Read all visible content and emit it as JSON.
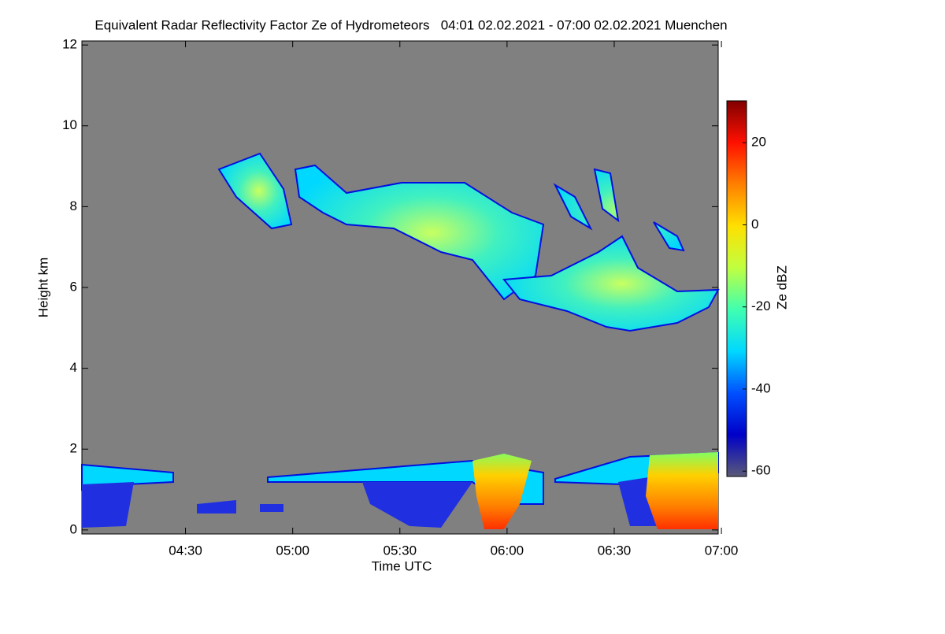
{
  "chart_data": {
    "type": "heatmap",
    "title": "Equivalent Radar Reflectivity Factor Ze of Hydrometeors   04:01 02.02.2021 - 07:00 02.02.2021 Muenchen",
    "x_label": "Time UTC",
    "y_label": "Height km",
    "colorbar_label": "Ze dBZ",
    "xlim": [
      241,
      419.1
    ],
    "xticks": [
      {
        "value": 270,
        "label": "04:30"
      },
      {
        "value": 300,
        "label": "05:00"
      },
      {
        "value": 330,
        "label": "05:30"
      },
      {
        "value": 360,
        "label": "06:00"
      },
      {
        "value": 390,
        "label": "06:30"
      },
      {
        "value": 420,
        "label": "07:00"
      }
    ],
    "ylim": [
      -0.1,
      12.1
    ],
    "yticks": [
      0,
      2,
      4,
      6,
      8,
      10,
      12
    ],
    "clim": [
      -61.3,
      30.2
    ],
    "cticks": [
      -60,
      -40,
      -20,
      0,
      20
    ],
    "colormap": [
      "#5a5a78",
      "#0000c8",
      "#0050ff",
      "#00d8ff",
      "#40ffb0",
      "#c0ff40",
      "#ffe000",
      "#ff8000",
      "#ff1000",
      "#800000"
    ],
    "background": "#808080"
  }
}
